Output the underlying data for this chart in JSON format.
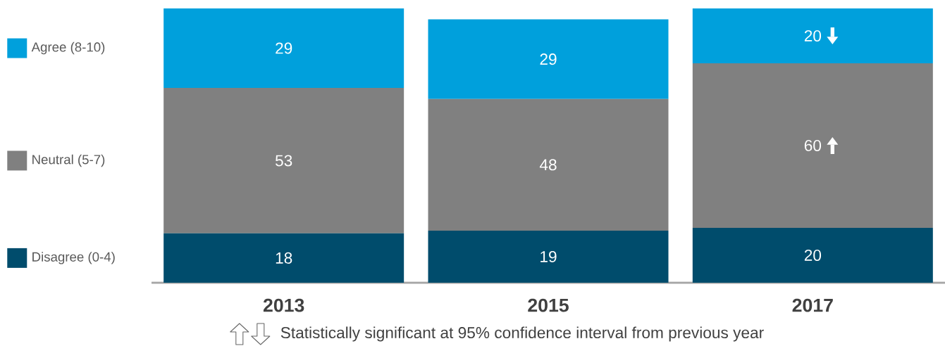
{
  "chart_data": {
    "type": "bar",
    "stacked": true,
    "categories": [
      "2013",
      "2015",
      "2017"
    ],
    "series": [
      {
        "name": "Disagree (0-4)",
        "color": "#004c6c",
        "values": [
          18,
          19,
          20
        ]
      },
      {
        "name": "Neutral (5-7)",
        "color": "#808080",
        "values": [
          53,
          48,
          60
        ]
      },
      {
        "name": "Agree (8-10)",
        "color": "#00a0dc",
        "values": [
          29,
          29,
          20
        ]
      }
    ],
    "data_labels": true,
    "legend": "left",
    "annotations": [
      "Statistically significant at 95% confidence interval from previous year"
    ]
  }
}
